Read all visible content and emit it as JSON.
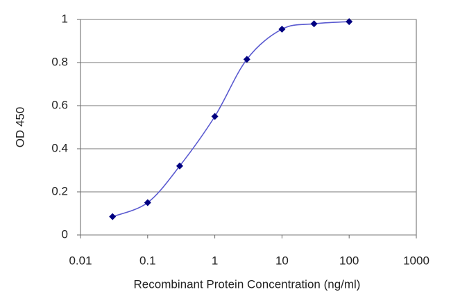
{
  "chart_data": {
    "type": "line",
    "x_label": "Recombinant Protein Concentration (ng/ml)",
    "y_label": "OD 450",
    "x": [
      0.03,
      0.1,
      0.3,
      1,
      3,
      10,
      30,
      100
    ],
    "values": [
      0.085,
      0.15,
      0.32,
      0.55,
      0.815,
      0.955,
      0.98,
      0.99
    ],
    "color": "#5a5ad0",
    "marker_color": "#000080",
    "xlog": true,
    "xlim": [
      0.01,
      1000
    ],
    "xticks": [
      0.01,
      0.1,
      1,
      10,
      100,
      1000
    ],
    "ylim": [
      0,
      1
    ],
    "yticks": [
      0,
      0.2,
      0.4,
      0.6,
      0.8,
      1
    ],
    "grid": true
  }
}
